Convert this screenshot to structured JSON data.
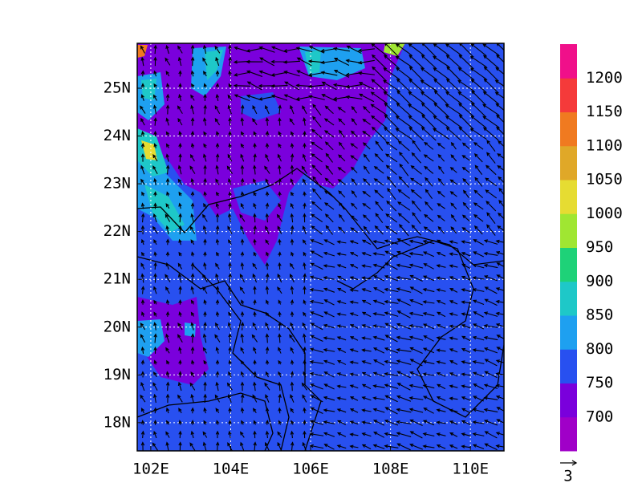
{
  "map": {
    "xlim": [
      101.66,
      110.84
    ],
    "ylim": [
      17.41,
      25.94
    ],
    "xticks": [
      {
        "value": 102,
        "label": "102E"
      },
      {
        "value": 104,
        "label": "104E"
      },
      {
        "value": 106,
        "label": "106E"
      },
      {
        "value": 108,
        "label": "108E"
      },
      {
        "value": 110,
        "label": "110E"
      }
    ],
    "yticks": [
      {
        "value": 18,
        "label": "18N"
      },
      {
        "value": 19,
        "label": "19N"
      },
      {
        "value": 20,
        "label": "20N"
      },
      {
        "value": 21,
        "label": "21N"
      },
      {
        "value": 22,
        "label": "22N"
      },
      {
        "value": 23,
        "label": "23N"
      },
      {
        "value": 24,
        "label": "24N"
      },
      {
        "value": 25,
        "label": "25N"
      }
    ],
    "grid": true
  },
  "colorbar": {
    "levels": [
      700,
      750,
      800,
      850,
      900,
      950,
      1000,
      1050,
      1100,
      1150,
      1200
    ],
    "colors": [
      "#a000c8",
      "#7a00dc",
      "#2850f0",
      "#1ea0f0",
      "#1ec8c8",
      "#1ed278",
      "#a0e632",
      "#e6dc32",
      "#e0a828",
      "#f07a20",
      "#f53a3a",
      "#f0108a"
    ]
  },
  "reference_vector": {
    "label": "3"
  }
}
